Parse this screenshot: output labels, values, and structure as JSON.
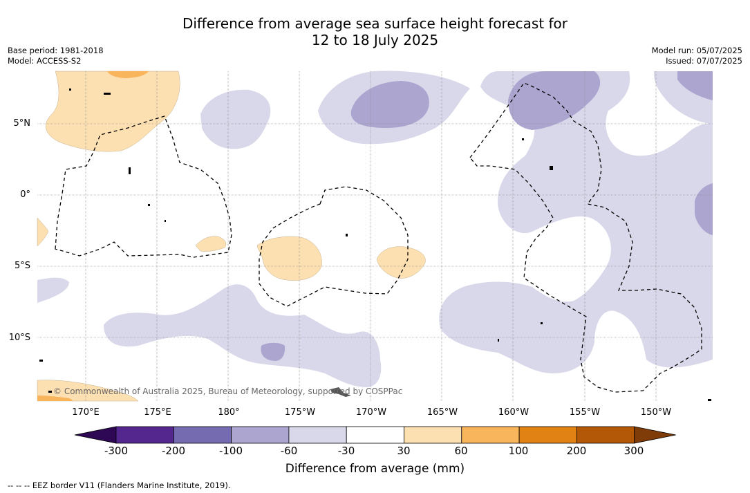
{
  "title": {
    "line1": "Difference from average sea surface height forecast for",
    "line2": "12 to 18 July 2025"
  },
  "meta_left": {
    "base_period": "Base period: 1981-2018",
    "model": "Model: ACCESS-S2"
  },
  "meta_right": {
    "model_run": "Model run: 05/07/2025",
    "issued": "Issued: 07/07/2025"
  },
  "map": {
    "lat_labels": [
      "5°N",
      "0°",
      "5°S",
      "10°S"
    ],
    "lon_labels": [
      "170°E",
      "175°E",
      "180°",
      "175°W",
      "170°W",
      "165°W",
      "160°W",
      "155°W",
      "150°W"
    ],
    "copyright": "© Commonwealth of Australia 2025, Bureau of Meteorology, supported by COSPPac"
  },
  "colorbar": {
    "title": "Difference from average (mm)",
    "ticks": [
      "-300",
      "-200",
      "-100",
      "-60",
      "-30",
      "30",
      "60",
      "100",
      "200",
      "300"
    ],
    "colors": [
      "#2e0854",
      "#54278f",
      "#756bb1",
      "#aba5d0",
      "#d8d8ea",
      "#ffffff",
      "#fde0b2",
      "#f8b55c",
      "#e08214",
      "#b35806",
      "#7f3b08"
    ]
  },
  "footnote": "--  --  -- EEZ border V11 (Flanders Marine Institute, 2019)."
}
